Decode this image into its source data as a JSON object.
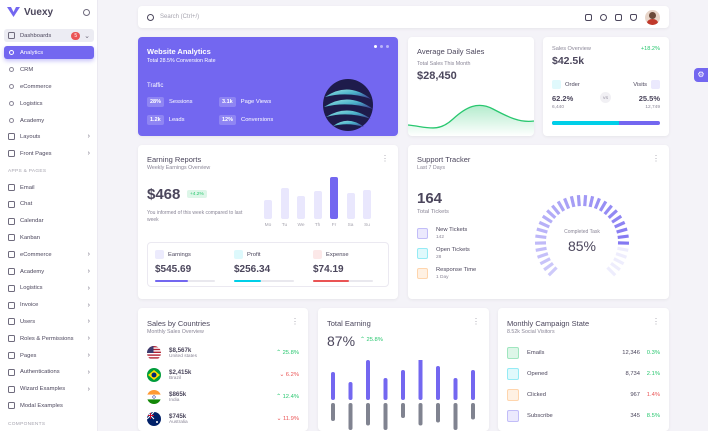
{
  "brand": {
    "name": "Vuexy"
  },
  "nav": {
    "dashboards": {
      "label": "Dashboards",
      "badge": "5"
    },
    "sub": [
      {
        "label": "Analytics"
      },
      {
        "label": "CRM"
      },
      {
        "label": "eCommerce"
      },
      {
        "label": "Logistics"
      },
      {
        "label": "Academy"
      }
    ],
    "items1": [
      {
        "label": "Layouts"
      },
      {
        "label": "Front Pages"
      }
    ],
    "section": "APPS & PAGES",
    "apps": [
      {
        "label": "Email",
        "chev": false
      },
      {
        "label": "Chat",
        "chev": false
      },
      {
        "label": "Calendar",
        "chev": false
      },
      {
        "label": "Kanban",
        "chev": false
      },
      {
        "label": "eCommerce",
        "chev": true
      },
      {
        "label": "Academy",
        "chev": true
      },
      {
        "label": "Logistics",
        "chev": true
      },
      {
        "label": "Invoice",
        "chev": true
      },
      {
        "label": "Users",
        "chev": true
      },
      {
        "label": "Roles & Permissions",
        "chev": true
      },
      {
        "label": "Pages",
        "chev": true
      },
      {
        "label": "Authentications",
        "chev": true
      },
      {
        "label": "Wizard Examples",
        "chev": true
      },
      {
        "label": "Modal Examples",
        "chev": false
      }
    ],
    "section2": "COMPONENTS"
  },
  "topbar": {
    "search_placeholder": "Search (Ctrl+/)"
  },
  "website_analytics": {
    "title": "Website Analytics",
    "subtitle": "Total 28.5% Conversion Rate",
    "traffic_label": "Traffic",
    "stats": [
      {
        "value": "28%",
        "label": "Sessions"
      },
      {
        "value": "3.1k",
        "label": "Page Views"
      },
      {
        "value": "1.2k",
        "label": "Leads"
      },
      {
        "value": "12%",
        "label": "Conversions"
      }
    ]
  },
  "avg_sales": {
    "title": "Average Daily Sales",
    "subtitle": "Total Sales This Month",
    "value": "$28,450"
  },
  "sales_overview": {
    "title": "Sales Overview",
    "change": "+18.2%",
    "value": "$42.5k",
    "order_label": "Order",
    "visits_label": "Visits",
    "vs": "VS",
    "order_pct": "62.2%",
    "order_count": "6,440",
    "visits_pct": "25.5%",
    "visits_count": "12,749",
    "order_share": 62.2
  },
  "earning_reports": {
    "title": "Earning Reports",
    "subtitle": "Weekly Earnings Overview",
    "value": "$468",
    "change": "+4.2%",
    "note": "You informed of this week compared to last week",
    "days": [
      "Mo",
      "Tu",
      "We",
      "Th",
      "Fr",
      "Sa",
      "Su"
    ],
    "bars": [
      40,
      65,
      50,
      60,
      90,
      55,
      62
    ],
    "items": [
      {
        "label": "Earnings",
        "value": "$545.69",
        "color": "#7367f0",
        "fill": 55
      },
      {
        "label": "Profit",
        "value": "$256.34",
        "color": "#00cfe8",
        "fill": 45
      },
      {
        "label": "Expense",
        "value": "$74.19",
        "color": "#ea5455",
        "fill": 60
      }
    ]
  },
  "support": {
    "title": "Support Tracker",
    "subtitle": "Last 7 Days",
    "total": "164",
    "total_label": "Total Tickets",
    "completed_label": "Completed Task",
    "completed": "85%",
    "completed_value": 85,
    "rows": [
      {
        "label": "New Tickets",
        "value": "142",
        "bg": "#ebe9fd",
        "fg": "#7367f0"
      },
      {
        "label": "Open Tickets",
        "value": "28",
        "bg": "#e0f9fc",
        "fg": "#00cfe8"
      },
      {
        "label": "Response Time",
        "value": "1 Day",
        "bg": "#fff1e3",
        "fg": "#ff9f43"
      }
    ]
  },
  "countries": {
    "title": "Sales by Countries",
    "subtitle": "Monthly Sales Overview",
    "rows": [
      {
        "value": "$8,567k",
        "name": "United states",
        "trend": "25.8%",
        "up": true
      },
      {
        "value": "$2,415k",
        "name": "Brazil",
        "trend": "6.2%",
        "up": false
      },
      {
        "value": "$865k",
        "name": "India",
        "trend": "12.4%",
        "up": true
      },
      {
        "value": "$745k",
        "name": "Australia",
        "trend": "11.9%",
        "up": false
      }
    ]
  },
  "total_earning": {
    "title": "Total Earning",
    "value": "87%",
    "change": "25.8%",
    "up": [
      28,
      18,
      40,
      22,
      30,
      46,
      34,
      22,
      30
    ],
    "down": [
      24,
      36,
      30,
      36,
      20,
      30,
      26,
      36,
      22
    ]
  },
  "campaign": {
    "title": "Monthly Campaign State",
    "subtitle": "8.52k Social Visitors",
    "rows": [
      {
        "label": "Emails",
        "count": "12,346",
        "pct": "0.3%",
        "up": true,
        "bg": "#ddf6e8",
        "fg": "#28c76f"
      },
      {
        "label": "Opened",
        "count": "8,734",
        "pct": "2.1%",
        "up": true,
        "bg": "#e0f9fc",
        "fg": "#00cfe8"
      },
      {
        "label": "Clicked",
        "count": "967",
        "pct": "1.4%",
        "up": false,
        "bg": "#fff1e3",
        "fg": "#ff9f43"
      },
      {
        "label": "Subscribe",
        "count": "345",
        "pct": "8.5%",
        "up": true,
        "bg": "#ebe9fd",
        "fg": "#7367f0"
      }
    ]
  }
}
